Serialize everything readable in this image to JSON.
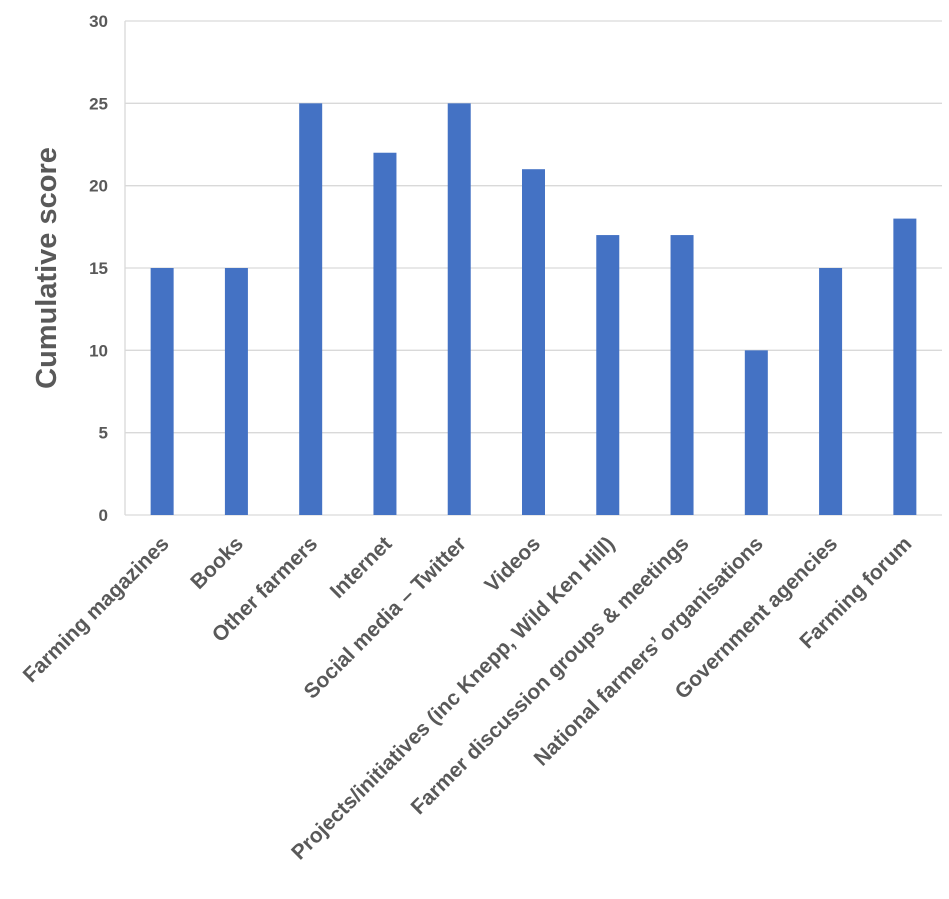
{
  "chart_data": {
    "type": "bar",
    "title": "",
    "xlabel": "",
    "ylabel": "Cumulative score",
    "categories": [
      "Farming magazines",
      "Books",
      "Other farmers",
      "Internet",
      "Social media – Twitter",
      "Videos",
      "Projects/initiatives (inc Knepp, Wild Ken Hill)",
      "Farmer discussion groups & meetings",
      "National farmers’ organisations",
      "Government agencies",
      "Farming forum"
    ],
    "values": [
      15,
      15,
      25,
      22,
      25,
      21,
      17,
      17,
      10,
      15,
      18
    ],
    "ylim": [
      0,
      30
    ],
    "yticks": [
      0,
      5,
      10,
      15,
      20,
      25,
      30
    ],
    "grid": true,
    "legend": "none",
    "bar_color": "#4472C4",
    "grid_color": "#D9D9D9",
    "text_color": "#595959"
  }
}
